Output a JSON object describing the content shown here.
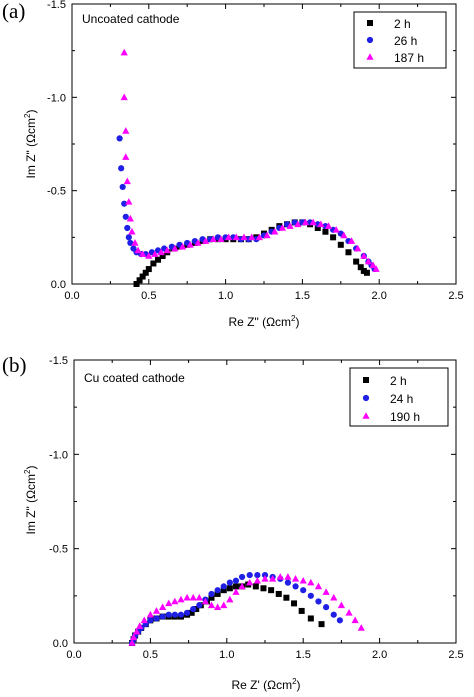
{
  "chart_data": [
    {
      "type": "scatter",
      "panel_label": "(a)",
      "title": "Uncoated cathode",
      "xlabel_main": "Re Z\" (Ωcm",
      "xlabel_sup": "2",
      "xlabel_tail": ")",
      "ylabel_main": "Im Z\" (Ωcm",
      "ylabel_sup": "2",
      "ylabel_tail": ")",
      "xlim": [
        0.0,
        2.5
      ],
      "ylim": [
        0.0,
        -1.5
      ],
      "y_inverted": true,
      "xticks": [
        "0.0",
        "0.5",
        "1.0",
        "1.5",
        "2.0",
        "2.5"
      ],
      "yticks": [
        "0.0",
        "-0.5",
        "-1.0",
        "-1.5"
      ],
      "legend_position": "top-right",
      "series": [
        {
          "name": "2 h",
          "marker": "square",
          "color": "#000000",
          "x": [
            0.42,
            0.44,
            0.46,
            0.48,
            0.5,
            0.53,
            0.56,
            0.59,
            0.62,
            0.66,
            0.7,
            0.75,
            0.8,
            0.85,
            0.9,
            0.95,
            1.0,
            1.05,
            1.1,
            1.15,
            1.2,
            1.25,
            1.3,
            1.35,
            1.4,
            1.45,
            1.5,
            1.55,
            1.6,
            1.65,
            1.7,
            1.75,
            1.8,
            1.85,
            1.88,
            1.9,
            1.92
          ],
          "y": [
            0.0,
            -0.02,
            -0.04,
            -0.06,
            -0.08,
            -0.11,
            -0.13,
            -0.15,
            -0.17,
            -0.19,
            -0.2,
            -0.21,
            -0.22,
            -0.23,
            -0.24,
            -0.24,
            -0.24,
            -0.24,
            -0.24,
            -0.24,
            -0.25,
            -0.27,
            -0.29,
            -0.31,
            -0.32,
            -0.33,
            -0.33,
            -0.32,
            -0.3,
            -0.28,
            -0.25,
            -0.21,
            -0.17,
            -0.12,
            -0.09,
            -0.07,
            -0.06
          ]
        },
        {
          "name": "26 h",
          "marker": "circle",
          "color": "#1f1fe6",
          "x": [
            0.31,
            0.32,
            0.33,
            0.34,
            0.35,
            0.36,
            0.37,
            0.38,
            0.4,
            0.42,
            0.45,
            0.48,
            0.52,
            0.56,
            0.6,
            0.65,
            0.7,
            0.75,
            0.8,
            0.85,
            0.9,
            0.95,
            1.0,
            1.05,
            1.1,
            1.15,
            1.2,
            1.25,
            1.3,
            1.35,
            1.4,
            1.45,
            1.5,
            1.55,
            1.6,
            1.65,
            1.7,
            1.75,
            1.8,
            1.85,
            1.9,
            1.93,
            1.95,
            1.97
          ],
          "y": [
            -0.78,
            -0.62,
            -0.52,
            -0.43,
            -0.36,
            -0.3,
            -0.25,
            -0.22,
            -0.19,
            -0.17,
            -0.16,
            -0.16,
            -0.17,
            -0.18,
            -0.19,
            -0.2,
            -0.21,
            -0.22,
            -0.23,
            -0.24,
            -0.24,
            -0.25,
            -0.25,
            -0.25,
            -0.24,
            -0.24,
            -0.24,
            -0.26,
            -0.28,
            -0.3,
            -0.32,
            -0.33,
            -0.33,
            -0.33,
            -0.32,
            -0.31,
            -0.29,
            -0.27,
            -0.23,
            -0.19,
            -0.15,
            -0.12,
            -0.1,
            -0.08
          ]
        },
        {
          "name": "187 h",
          "marker": "triangle",
          "color": "#ff00ff",
          "x": [
            0.34,
            0.34,
            0.35,
            0.35,
            0.36,
            0.37,
            0.38,
            0.39,
            0.41,
            0.43,
            0.46,
            0.5,
            0.54,
            0.58,
            0.62,
            0.67,
            0.72,
            0.77,
            0.82,
            0.87,
            0.92,
            0.97,
            1.02,
            1.07,
            1.12,
            1.17,
            1.22,
            1.27,
            1.32,
            1.37,
            1.42,
            1.47,
            1.52,
            1.57,
            1.62,
            1.67,
            1.72,
            1.77,
            1.82,
            1.86,
            1.9,
            1.93,
            1.96,
            1.98
          ],
          "y": [
            -1.24,
            -1.0,
            -0.82,
            -0.68,
            -0.55,
            -0.44,
            -0.35,
            -0.28,
            -0.22,
            -0.18,
            -0.16,
            -0.15,
            -0.16,
            -0.17,
            -0.18,
            -0.19,
            -0.2,
            -0.21,
            -0.22,
            -0.23,
            -0.24,
            -0.24,
            -0.25,
            -0.25,
            -0.25,
            -0.25,
            -0.25,
            -0.26,
            -0.28,
            -0.3,
            -0.31,
            -0.32,
            -0.33,
            -0.33,
            -0.32,
            -0.31,
            -0.29,
            -0.26,
            -0.23,
            -0.19,
            -0.15,
            -0.12,
            -0.1,
            -0.08
          ]
        }
      ]
    },
    {
      "type": "scatter",
      "panel_label": "(b)",
      "title": "Cu coated cathode",
      "xlabel_main": "Re Z' (Ωcm",
      "xlabel_sup": "2",
      "xlabel_tail": ")",
      "ylabel_main": "Im Z\" (Ωcm",
      "ylabel_sup": "2",
      "ylabel_tail": ")",
      "xlim": [
        0.0,
        2.5
      ],
      "ylim": [
        0.0,
        -1.5
      ],
      "y_inverted": true,
      "xticks": [
        "0.0",
        "0.5",
        "1.0",
        "1.5",
        "2.0",
        "2.5"
      ],
      "yticks": [
        "0.0",
        "-0.5",
        "-1.0",
        "-1.5"
      ],
      "legend_position": "top-right",
      "series": [
        {
          "name": "2 h",
          "marker": "square",
          "color": "#000000",
          "x": [
            0.38,
            0.39,
            0.4,
            0.42,
            0.44,
            0.47,
            0.5,
            0.54,
            0.58,
            0.62,
            0.66,
            0.7,
            0.74,
            0.77,
            0.8,
            0.83,
            0.87,
            0.9,
            0.94,
            0.98,
            1.02,
            1.06,
            1.1,
            1.14,
            1.19,
            1.24,
            1.29,
            1.34,
            1.39,
            1.44,
            1.49,
            1.55,
            1.62
          ],
          "y": [
            0.0,
            -0.02,
            -0.04,
            -0.06,
            -0.08,
            -0.1,
            -0.12,
            -0.13,
            -0.14,
            -0.14,
            -0.14,
            -0.14,
            -0.15,
            -0.16,
            -0.18,
            -0.2,
            -0.22,
            -0.24,
            -0.26,
            -0.28,
            -0.29,
            -0.3,
            -0.3,
            -0.31,
            -0.3,
            -0.29,
            -0.28,
            -0.26,
            -0.24,
            -0.21,
            -0.17,
            -0.13,
            -0.1
          ]
        },
        {
          "name": "24 h",
          "marker": "circle",
          "color": "#1f1fe6",
          "x": [
            0.38,
            0.39,
            0.4,
            0.42,
            0.44,
            0.47,
            0.5,
            0.54,
            0.58,
            0.62,
            0.66,
            0.7,
            0.74,
            0.78,
            0.82,
            0.86,
            0.9,
            0.94,
            0.98,
            1.02,
            1.06,
            1.1,
            1.15,
            1.2,
            1.25,
            1.3,
            1.35,
            1.4,
            1.45,
            1.5,
            1.55,
            1.6,
            1.65,
            1.7,
            1.74
          ],
          "y": [
            0.0,
            -0.02,
            -0.04,
            -0.06,
            -0.08,
            -0.1,
            -0.12,
            -0.13,
            -0.14,
            -0.15,
            -0.15,
            -0.15,
            -0.16,
            -0.18,
            -0.2,
            -0.23,
            -0.26,
            -0.28,
            -0.3,
            -0.32,
            -0.33,
            -0.35,
            -0.36,
            -0.36,
            -0.36,
            -0.35,
            -0.34,
            -0.32,
            -0.3,
            -0.28,
            -0.25,
            -0.22,
            -0.19,
            -0.15,
            -0.12
          ]
        },
        {
          "name": "190 h",
          "marker": "triangle",
          "color": "#ff00ff",
          "x": [
            0.38,
            0.39,
            0.41,
            0.43,
            0.46,
            0.5,
            0.54,
            0.58,
            0.62,
            0.66,
            0.7,
            0.74,
            0.78,
            0.82,
            0.86,
            0.9,
            0.94,
            0.98,
            1.02,
            1.06,
            1.1,
            1.15,
            1.2,
            1.25,
            1.3,
            1.35,
            1.4,
            1.45,
            1.5,
            1.55,
            1.6,
            1.65,
            1.7,
            1.75,
            1.8,
            1.84,
            1.88
          ],
          "y": [
            0.0,
            -0.03,
            -0.06,
            -0.09,
            -0.12,
            -0.15,
            -0.17,
            -0.19,
            -0.21,
            -0.22,
            -0.23,
            -0.24,
            -0.24,
            -0.24,
            -0.22,
            -0.2,
            -0.19,
            -0.2,
            -0.23,
            -0.27,
            -0.3,
            -0.32,
            -0.33,
            -0.34,
            -0.34,
            -0.35,
            -0.35,
            -0.34,
            -0.33,
            -0.32,
            -0.3,
            -0.27,
            -0.24,
            -0.2,
            -0.16,
            -0.12,
            -0.08
          ]
        }
      ]
    }
  ]
}
